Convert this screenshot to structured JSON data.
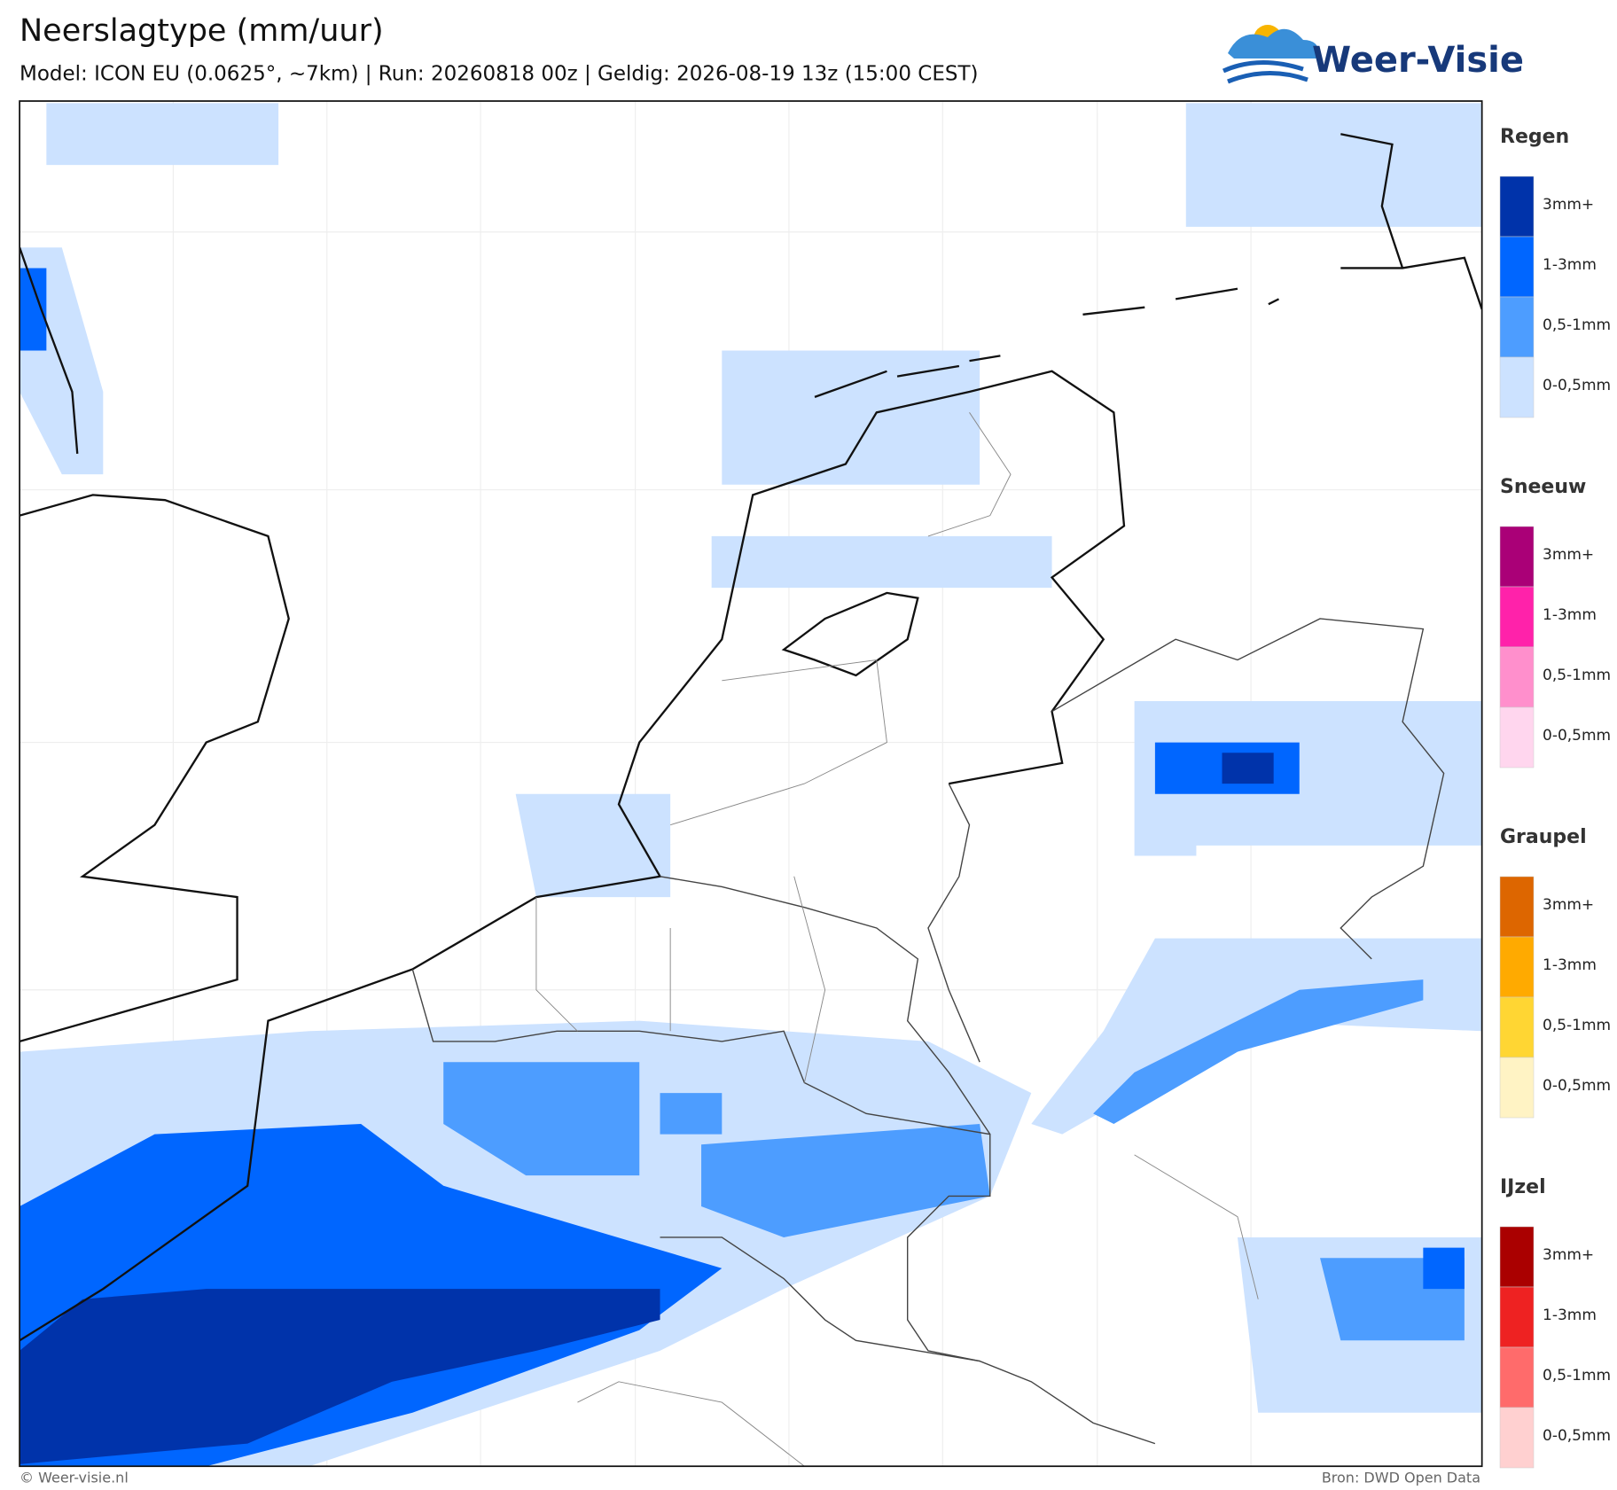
{
  "header": {
    "title": "Neerslagtype (mm/uur)",
    "subtitle": "Model: ICON EU (0.0625°, ~7km)  |  Run: 20260818 00z  |  Geldig: 2026-08-19 13z (15:00 CEST)"
  },
  "logo": {
    "text": "Weer-Visie"
  },
  "legend": [
    {
      "title": "Regen",
      "items": [
        {
          "label": "3mm+",
          "color": "#0033aa"
        },
        {
          "label": "1-3mm",
          "color": "#0066ff"
        },
        {
          "label": "0,5-1mm",
          "color": "#4d9dff"
        },
        {
          "label": "0-0,5mm",
          "color": "#cce2ff"
        }
      ]
    },
    {
      "title": "Sneeuw",
      "items": [
        {
          "label": "3mm+",
          "color": "#aa0077"
        },
        {
          "label": "1-3mm",
          "color": "#ff22aa"
        },
        {
          "label": "0,5-1mm",
          "color": "#ff8fcc"
        },
        {
          "label": "0-0,5mm",
          "color": "#ffd6ee"
        }
      ]
    },
    {
      "title": "Graupel",
      "items": [
        {
          "label": "3mm+",
          "color": "#dd6600"
        },
        {
          "label": "1-3mm",
          "color": "#ffaa00"
        },
        {
          "label": "0,5-1mm",
          "color": "#ffd633"
        },
        {
          "label": "0-0,5mm",
          "color": "#fff3c4"
        }
      ]
    },
    {
      "title": "IJzel",
      "items": [
        {
          "label": "3mm+",
          "color": "#aa0000"
        },
        {
          "label": "1-3mm",
          "color": "#ee2222"
        },
        {
          "label": "0,5-1mm",
          "color": "#ff6b6b"
        },
        {
          "label": "0-0,5mm",
          "color": "#ffd0d0"
        }
      ]
    }
  ],
  "footer": {
    "left": "© Weer-visie.nl",
    "right": "Bron: DWD Open Data"
  }
}
